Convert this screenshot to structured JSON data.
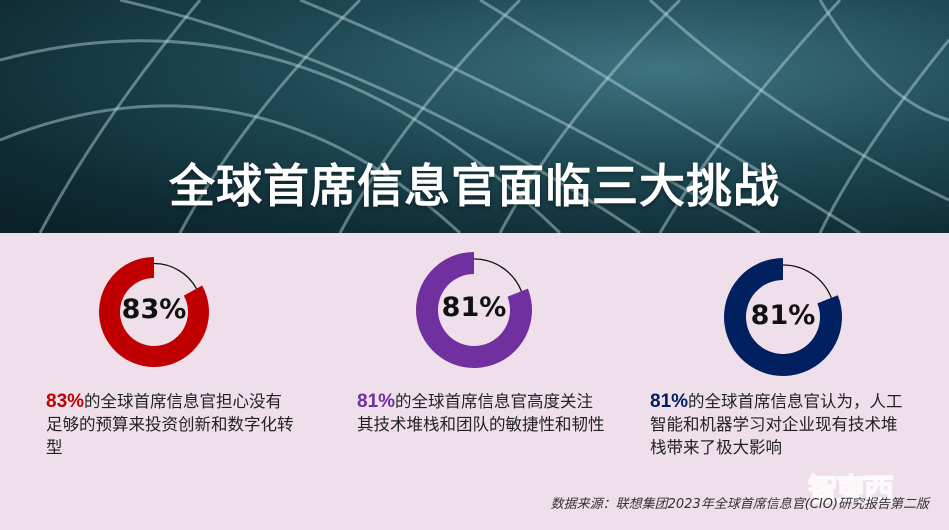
{
  "title": "全球首席信息官面临三大挑战",
  "stats": [
    {
      "value": 83,
      "label": "83%",
      "color": "#c00000",
      "highlight": "83%",
      "text": "的全球首席信息官担心没有足够的预算来投资创新和数字化转型"
    },
    {
      "value": 81,
      "label": "81%",
      "color": "#7030a0",
      "highlight": "81%",
      "text": "的全球首席信息官高度关注其技术堆栈和团队的敏捷性和韧性"
    },
    {
      "value": 81,
      "label": "81%",
      "color": "#002060",
      "highlight": "81%",
      "text": "的全球首席信息官认为，人工智能和机器学习对企业现有技术堆栈带来了极大影响"
    }
  ],
  "source": "数据来源：联想集团2023年全球首席信息官(CIO)研究报告第二版",
  "watermark": "智东西"
}
